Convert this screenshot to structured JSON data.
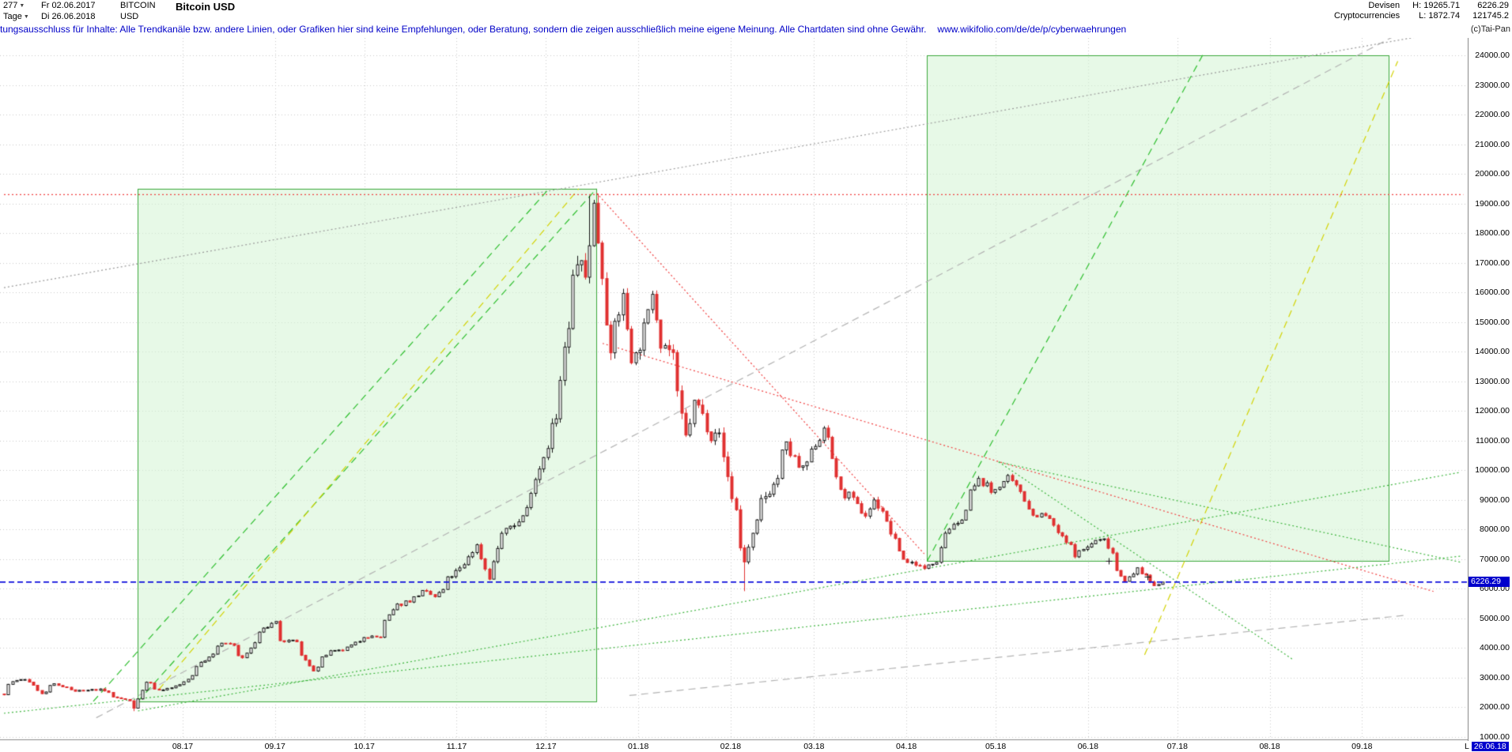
{
  "header": {
    "bars_count": "277",
    "timeframe": "Tage",
    "start_date": "Fr 02.06.2017",
    "end_date": "Di 26.06.2018",
    "symbol": "BITCOIN",
    "currency": "USD",
    "title": "Bitcoin USD",
    "category": "Devisen",
    "subcategory": "Cryptocurrencies",
    "high": "H: 19265.71",
    "low": "L: 1872.74",
    "last": "6226.29",
    "secondary_value": "121745.2"
  },
  "disclaimer": {
    "text": "tungsausschluss für Inhalte: Alle Trendkanäle bzw. andere Linien, oder Grafiken hier sind keine Empfehlungen, oder Beratung, sondern die zeigen ausschließlich meine eigene Meinung. Alle Chartdaten sind ohne Gewähr.",
    "link": "www.wikifolio.com/de/de/p/cyberwaehrungen",
    "copyright": "(c)Tai-Pan"
  },
  "icons": {
    "dropdown_caret": "▼"
  },
  "axis": {
    "y_labels": [
      "24000.00",
      "23000.00",
      "22000.00",
      "21000.00",
      "20000.00",
      "19000.00",
      "18000.00",
      "17000.00",
      "16000.00",
      "15000.00",
      "14000.00",
      "13000.00",
      "12000.00",
      "11000.00",
      "10000.00",
      "9000.00",
      "8000.00",
      "7000.00",
      "6000.00",
      "5000.00",
      "4000.00",
      "3000.00",
      "2000.00",
      "1000.00"
    ],
    "x_labels": [
      {
        "label": "08.17",
        "day": 60
      },
      {
        "label": "09.17",
        "day": 91
      },
      {
        "label": "10.17",
        "day": 121
      },
      {
        "label": "11.17",
        "day": 152
      },
      {
        "label": "12.17",
        "day": 182
      },
      {
        "label": "01.18",
        "day": 213
      },
      {
        "label": "02.18",
        "day": 244
      },
      {
        "label": "03.18",
        "day": 272
      },
      {
        "label": "04.18",
        "day": 303
      },
      {
        "label": "05.18",
        "day": 333
      },
      {
        "label": "06.18",
        "day": 364
      },
      {
        "label": "07.18",
        "day": 394
      },
      {
        "label": "08.18",
        "day": 425
      },
      {
        "label": "09.18",
        "day": 456
      }
    ],
    "price_badge": "6226.29",
    "last_bar_prefix": "L",
    "last_bar_badge": "26.06.18"
  },
  "chart_data": {
    "type": "candlestick",
    "title": "Bitcoin USD",
    "timeframe": "Tage (daily bars, weekdays)",
    "bars_visible": 277,
    "date_range": {
      "from": "02.06.2017",
      "to": "26.06.2018"
    },
    "y_axis_range": [
      1000,
      24000
    ],
    "y_axis_step": 1000,
    "period_high": 19265.71,
    "period_low": 1872.74,
    "last_price": 6226.29,
    "price_path_day_price": [
      [
        0,
        2450
      ],
      [
        4,
        2870
      ],
      [
        9,
        3000
      ],
      [
        13,
        2450
      ],
      [
        18,
        2780
      ],
      [
        25,
        2550
      ],
      [
        33,
        2600
      ],
      [
        38,
        2350
      ],
      [
        42,
        2230
      ],
      [
        45,
        1990
      ],
      [
        48,
        2860
      ],
      [
        53,
        2580
      ],
      [
        60,
        2750
      ],
      [
        66,
        3400
      ],
      [
        71,
        3870
      ],
      [
        74,
        4160
      ],
      [
        77,
        4100
      ],
      [
        81,
        3650
      ],
      [
        85,
        4350
      ],
      [
        91,
        4920
      ],
      [
        94,
        4230
      ],
      [
        98,
        4230
      ],
      [
        104,
        3250
      ],
      [
        110,
        3880
      ],
      [
        115,
        3930
      ],
      [
        121,
        4400
      ],
      [
        126,
        4370
      ],
      [
        132,
        5450
      ],
      [
        137,
        5600
      ],
      [
        141,
        6000
      ],
      [
        145,
        5730
      ],
      [
        151,
        6450
      ],
      [
        157,
        7100
      ],
      [
        159,
        7450
      ],
      [
        163,
        5900
      ],
      [
        167,
        7870
      ],
      [
        173,
        8250
      ],
      [
        178,
        9350
      ],
      [
        182,
        10900
      ],
      [
        186,
        11700
      ],
      [
        188,
        14100
      ],
      [
        190,
        15200
      ],
      [
        193,
        17100
      ],
      [
        195,
        16500
      ],
      [
        197,
        19100
      ],
      [
        199,
        18900
      ],
      [
        201,
        16700
      ],
      [
        203,
        13700
      ],
      [
        208,
        15800
      ],
      [
        211,
        12900
      ],
      [
        216,
        15200
      ],
      [
        218,
        17050
      ],
      [
        221,
        14400
      ],
      [
        225,
        13800
      ],
      [
        229,
        11100
      ],
      [
        232,
        12800
      ],
      [
        237,
        11200
      ],
      [
        240,
        11800
      ],
      [
        244,
        9100
      ],
      [
        249,
        6950
      ],
      [
        253,
        8600
      ],
      [
        258,
        9500
      ],
      [
        263,
        10800
      ],
      [
        268,
        9650
      ],
      [
        272,
        10900
      ],
      [
        276,
        11550
      ],
      [
        280,
        9250
      ],
      [
        284,
        9150
      ],
      [
        289,
        8250
      ],
      [
        292,
        8950
      ],
      [
        297,
        8200
      ],
      [
        301,
        7000
      ],
      [
        306,
        6850
      ],
      [
        308,
        6650
      ],
      [
        313,
        6950
      ],
      [
        315,
        7900
      ],
      [
        320,
        8150
      ],
      [
        323,
        8900
      ],
      [
        327,
        9650
      ],
      [
        332,
        9250
      ],
      [
        337,
        9850
      ],
      [
        341,
        9300
      ],
      [
        344,
        8450
      ],
      [
        348,
        8500
      ],
      [
        352,
        8250
      ],
      [
        356,
        7550
      ],
      [
        360,
        7150
      ],
      [
        365,
        7600
      ],
      [
        369,
        7650
      ],
      [
        373,
        6800
      ],
      [
        376,
        6300
      ],
      [
        381,
        6700
      ],
      [
        385,
        6100
      ],
      [
        389,
        6226.29
      ]
    ],
    "wick_overrides": [
      {
        "day": 45,
        "low": 1872.74
      },
      {
        "day": 196,
        "high": 19265.71
      },
      {
        "day": 249,
        "low": 5921
      }
    ],
    "overlays": {
      "green_boxes": [
        {
          "from_day": 45,
          "to_day": 199,
          "price_low": 2200,
          "price_high": 19500
        },
        {
          "from_day": 310,
          "to_day": 465,
          "price_low": 6940,
          "price_high": 24000
        }
      ],
      "lines": [
        {
          "color": "gray_dash",
          "style": "dash",
          "points": [
            [
              31,
              1650
            ],
            [
              483,
              25500
            ]
          ]
        },
        {
          "color": "gray_dot",
          "style": "dot",
          "points": [
            [
              0,
              16160
            ],
            [
              489,
              24880
            ]
          ]
        },
        {
          "color": "gray_dash",
          "style": "dash",
          "points": [
            [
              210,
              2400
            ],
            [
              470,
              5100
            ]
          ]
        },
        {
          "color": "support_green",
          "style": "dot",
          "points": [
            [
              0,
              1800
            ],
            [
              489,
              7100
            ]
          ]
        },
        {
          "color": "support_green",
          "style": "dot",
          "points": [
            [
              45,
              1880
            ],
            [
              489,
              9930
            ]
          ]
        },
        {
          "color": "support_green",
          "style": "dot",
          "points": [
            [
              334,
              10280
            ],
            [
              433,
              3600
            ]
          ]
        },
        {
          "color": "support_green",
          "style": "dot",
          "points": [
            [
              334,
              10280
            ],
            [
              489,
              6900
            ]
          ]
        },
        {
          "color": "trend_green",
          "style": "dash",
          "points": [
            [
              45,
              2200
            ],
            [
              199,
              19500
            ]
          ]
        },
        {
          "color": "trend_green",
          "style": "dash",
          "points": [
            [
              30,
              2200
            ],
            [
              183,
              19500
            ]
          ]
        },
        {
          "color": "trend_yellow",
          "style": "dash",
          "points": [
            [
              52,
              2600
            ],
            [
              193,
              19500
            ]
          ]
        },
        {
          "color": "trend_green",
          "style": "dash",
          "points": [
            [
              310,
              6940
            ],
            [
              403,
              24100
            ]
          ]
        },
        {
          "color": "trend_yellow",
          "style": "dash",
          "points": [
            [
              383,
              3770
            ],
            [
              468,
              23800
            ]
          ]
        },
        {
          "color": "alert_red",
          "style": "dot",
          "points": [
            [
              0,
              19300
            ],
            [
              490,
              19300
            ]
          ]
        },
        {
          "color": "alert_red",
          "style": "dot",
          "points": [
            [
              199,
              19350
            ],
            [
              309,
              7180
            ]
          ]
        },
        {
          "color": "alert_red",
          "style": "dot",
          "points": [
            [
              201,
              14280
            ],
            [
              480,
              5910
            ]
          ]
        }
      ],
      "last_price_line": 6226.29
    },
    "markers_plus": [
      [
        371,
        6950
      ],
      [
        384,
        6400
      ]
    ],
    "colors": {
      "candle_up": "#141414",
      "candle_down": "#e03030",
      "trend_green": "#2dbe2d",
      "trend_yellow": "#d2d200",
      "alert_red": "#f04040",
      "gray_dash": "#b2b2b2",
      "gray_dot": "#9a9a9a",
      "support_green": "#3cb43c",
      "last_blue": "#1010dc",
      "box_fill": "rgba(212,244,212,0.55)",
      "box_border": "#3aa63a",
      "grid": "#c9c9c9",
      "badge_blue": "#0000cc"
    }
  }
}
